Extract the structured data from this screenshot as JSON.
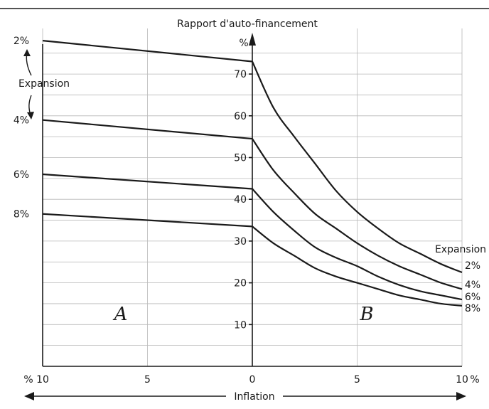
{
  "chart_data": {
    "type": "line",
    "title": "",
    "ylabel": "Rapport d'auto-financement",
    "y_unit": "%",
    "xlabel": "Inflation",
    "x_unit": "%",
    "ylim": [
      0,
      70
    ],
    "y_ticks": [
      "10",
      "20",
      "30",
      "40",
      "50",
      "60",
      "70"
    ],
    "x_ticks_left": [
      "10",
      "5",
      "0"
    ],
    "x_ticks_right": [
      "0",
      "5",
      "10"
    ],
    "x_unit_left": "%",
    "x_unit_right": "%",
    "region_labels": [
      "A",
      "B"
    ],
    "legend_title_left": "Expansion",
    "legend_title_right": "Expansion",
    "series": [
      {
        "name": "2%",
        "region_A": {
          "x": [
            10,
            0
          ],
          "y": [
            78,
            73
          ]
        },
        "region_B": {
          "x": [
            0,
            1,
            2,
            3,
            4,
            5,
            6,
            7,
            8,
            9,
            10
          ],
          "y": [
            73,
            62,
            55,
            48.5,
            42,
            37,
            33,
            29.5,
            27,
            24.5,
            22.5
          ]
        }
      },
      {
        "name": "4%",
        "region_A": {
          "x": [
            10,
            0
          ],
          "y": [
            59,
            54.5
          ]
        },
        "region_B": {
          "x": [
            0,
            1,
            2,
            3,
            4,
            5,
            6,
            7,
            8,
            9,
            10
          ],
          "y": [
            54.5,
            47,
            41.5,
            36.5,
            33,
            29.5,
            26.5,
            24,
            22,
            20,
            18.5
          ]
        }
      },
      {
        "name": "6%",
        "region_A": {
          "x": [
            10,
            0
          ],
          "y": [
            46,
            42.5
          ]
        },
        "region_B": {
          "x": [
            0,
            1,
            2,
            3,
            4,
            5,
            6,
            7,
            8,
            9,
            10
          ],
          "y": [
            42.5,
            37,
            32.5,
            28.5,
            26,
            24,
            21.5,
            19.5,
            18,
            17,
            16
          ]
        }
      },
      {
        "name": "8%",
        "region_A": {
          "x": [
            10,
            0
          ],
          "y": [
            36.5,
            33.5
          ]
        },
        "region_B": {
          "x": [
            0,
            1,
            2,
            3,
            4,
            5,
            6,
            7,
            8,
            9,
            10
          ],
          "y": [
            33.5,
            29.5,
            26.5,
            23.5,
            21.5,
            20,
            18.5,
            17,
            16,
            15,
            14.5
          ]
        }
      }
    ]
  }
}
